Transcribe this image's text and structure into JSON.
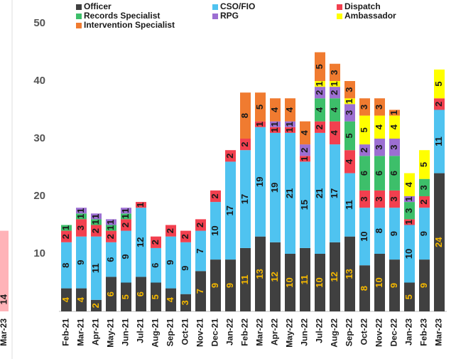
{
  "chart_data": [
    {
      "type": "stacked_bar",
      "categories": [
        "Feb-21",
        "Mar-21",
        "Apr-21",
        "May-21",
        "Jun-21",
        "Jul-21",
        "Aug-21",
        "Sep-21",
        "Oct-21",
        "Nov-21",
        "Dec-21",
        "Jan-22",
        "Feb-22",
        "Mar-22",
        "Apr-22",
        "May-22",
        "Jun-22",
        "Jul-22",
        "Aug-22",
        "Sep-22",
        "Oct-22",
        "Nov-22",
        "Dec-22",
        "Jan-23",
        "Feb-23",
        "Mar-23"
      ],
      "series": [
        {
          "name": "Officer",
          "color": "#404040",
          "values": [
            4,
            4,
            2,
            6,
            5,
            6,
            5,
            4,
            3,
            7,
            9,
            9,
            11,
            13,
            12,
            10,
            11,
            10,
            12,
            13,
            8,
            10,
            9,
            5,
            9,
            24
          ]
        },
        {
          "name": "CSO/FIO",
          "color": "#4fc3f0",
          "values": [
            8,
            9,
            11,
            6,
            9,
            12,
            6,
            9,
            9,
            7,
            10,
            17,
            17,
            19,
            19,
            21,
            15,
            21,
            17,
            11,
            10,
            8,
            9,
            10,
            9,
            11
          ]
        },
        {
          "name": "Dispatch",
          "color": "#f2404f",
          "values": [
            2,
            3,
            2,
            2,
            2,
            1,
            2,
            2,
            2,
            2,
            2,
            2,
            2,
            1,
            1,
            1,
            1,
            2,
            4,
            4,
            3,
            3,
            3,
            1,
            2,
            2
          ]
        },
        {
          "name": "Records Specialist",
          "color": "#3dbf6a",
          "values": [
            1,
            1,
            1,
            1,
            1,
            0,
            0,
            0,
            0,
            0,
            0,
            0,
            0,
            0,
            0,
            0,
            0,
            4,
            4,
            5,
            6,
            6,
            6,
            3,
            3,
            0
          ]
        },
        {
          "name": "RPG",
          "color": "#9c6fd2",
          "values": [
            0,
            1,
            1,
            1,
            1,
            0,
            0,
            0,
            0,
            0,
            0,
            0,
            0,
            0,
            1,
            1,
            2,
            2,
            2,
            3,
            2,
            3,
            3,
            1,
            0,
            0
          ]
        },
        {
          "name": "Ambassador",
          "color": "#ffff00",
          "values": [
            0,
            0,
            0,
            0,
            0,
            0,
            0,
            0,
            0,
            0,
            0,
            0,
            0,
            0,
            0,
            0,
            0,
            1,
            1,
            1,
            5,
            4,
            4,
            4,
            5,
            5
          ]
        },
        {
          "name": "Intervention Specialist",
          "color": "#f07b30",
          "values": [
            0,
            0,
            0,
            0,
            0,
            0,
            0,
            0,
            0,
            0,
            0,
            0,
            8,
            5,
            4,
            4,
            4,
            5,
            3,
            3,
            3,
            3,
            1,
            0,
            0,
            0
          ]
        }
      ],
      "ylim": [
        0,
        50
      ],
      "yticks": [
        10,
        20,
        30,
        40,
        50
      ],
      "grid": false
    },
    {
      "type": "bar",
      "categories": [
        "Mar-23"
      ],
      "values": [
        14
      ],
      "color": "#ffb3b8",
      "ylim": [
        0,
        50
      ]
    }
  ]
}
